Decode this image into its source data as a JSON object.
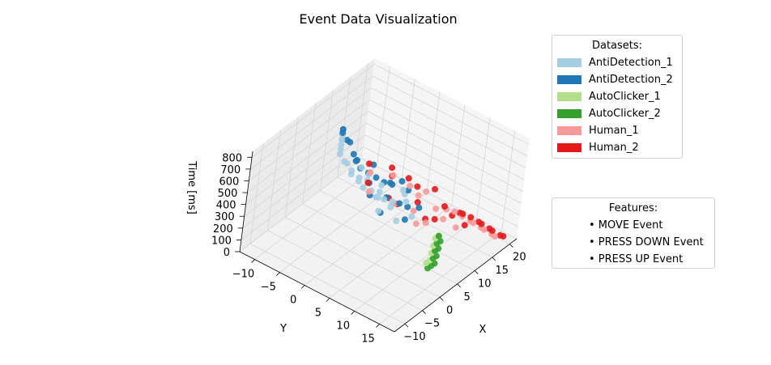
{
  "chart_data": {
    "type": "scatter",
    "projection": "3d",
    "title": "Event Data Visualization",
    "xlabel": "X",
    "ylabel": "Y",
    "zlabel": "Time [ms]",
    "xlim": [
      -13,
      22
    ],
    "ylim": [
      -13,
      18
    ],
    "zlim": [
      0,
      850
    ],
    "x_ticks": [
      -10,
      -5,
      0,
      5,
      10,
      15,
      20
    ],
    "y_ticks": [
      -10,
      -5,
      0,
      5,
      10,
      15
    ],
    "z_ticks": [
      0,
      100,
      200,
      300,
      400,
      500,
      600,
      700,
      800
    ],
    "grid": true,
    "legend_placement": "right",
    "series": [
      {
        "name": "AntiDetection_1",
        "color": "#a6cee3",
        "points": [
          [
            3,
            -6,
            820
          ],
          [
            3,
            -6,
            780
          ],
          [
            3,
            -6,
            740
          ],
          [
            3,
            -6,
            700
          ],
          [
            3,
            -6,
            660
          ],
          [
            3,
            -6,
            620
          ],
          [
            3,
            -5,
            580
          ],
          [
            4,
            -5,
            540
          ],
          [
            4,
            -4,
            500
          ],
          [
            4,
            -4,
            470
          ],
          [
            5,
            -3,
            440
          ],
          [
            5,
            -3,
            410
          ],
          [
            5,
            -2,
            380
          ],
          [
            6,
            -1,
            350
          ],
          [
            6,
            0,
            320
          ],
          [
            7,
            1,
            300
          ],
          [
            8,
            2,
            280
          ],
          [
            6,
            -2,
            420
          ],
          [
            5,
            1,
            360
          ],
          [
            7,
            0,
            340
          ],
          [
            9,
            -1,
            330
          ],
          [
            8,
            -3,
            400
          ],
          [
            6,
            3,
            300
          ],
          [
            10,
            3,
            320
          ],
          [
            4,
            2,
            290
          ],
          [
            7,
            -4,
            460
          ],
          [
            9,
            4,
            300
          ],
          [
            11,
            2,
            310
          ],
          [
            5,
            5,
            250
          ],
          [
            8,
            6,
            240
          ]
        ]
      },
      {
        "name": "AntiDetection_2",
        "color": "#1f78b4",
        "points": [
          [
            3,
            -6,
            830
          ],
          [
            3,
            -6,
            800
          ],
          [
            3,
            -5,
            760
          ],
          [
            4,
            -5,
            720
          ],
          [
            4,
            -4,
            640
          ],
          [
            5,
            -4,
            560
          ],
          [
            5,
            -3,
            520
          ],
          [
            6,
            -2,
            480
          ],
          [
            7,
            -1,
            440
          ],
          [
            8,
            0,
            400
          ],
          [
            9,
            1,
            380
          ],
          [
            6,
            2,
            360
          ],
          [
            10,
            0,
            350
          ],
          [
            4,
            0,
            380
          ],
          [
            7,
            4,
            330
          ],
          [
            11,
            3,
            330
          ],
          [
            9,
            -3,
            460
          ],
          [
            5,
            -1,
            440
          ],
          [
            8,
            5,
            300
          ],
          [
            12,
            1,
            340
          ],
          [
            3,
            3,
            320
          ],
          [
            10,
            6,
            270
          ],
          [
            6,
            6,
            260
          ],
          [
            7,
            -5,
            500
          ]
        ]
      },
      {
        "name": "AutoClicker_1",
        "color": "#b2df8a",
        "points": [
          [
            1,
            14,
            180
          ],
          [
            2,
            14,
            180
          ],
          [
            3,
            14,
            175
          ],
          [
            4,
            13,
            175
          ],
          [
            5,
            13,
            170
          ],
          [
            6,
            12,
            170
          ],
          [
            7,
            12,
            170
          ],
          [
            8,
            11,
            165
          ],
          [
            9,
            11,
            165
          ]
        ]
      },
      {
        "name": "AutoClicker_2",
        "color": "#33a02c",
        "points": [
          [
            0,
            15,
            180
          ],
          [
            1,
            15,
            178
          ],
          [
            2,
            15,
            176
          ],
          [
            3,
            14,
            174
          ],
          [
            4,
            14,
            172
          ],
          [
            5,
            13,
            170
          ],
          [
            6,
            13,
            168
          ],
          [
            7,
            12,
            166
          ],
          [
            8,
            12,
            164
          ],
          [
            9,
            11,
            162
          ]
        ]
      },
      {
        "name": "Human_1",
        "color": "#fb9a99",
        "points": [
          [
            20,
            15,
            0
          ],
          [
            19,
            15,
            40
          ],
          [
            18,
            14,
            80
          ],
          [
            17,
            14,
            120
          ],
          [
            16,
            13,
            160
          ],
          [
            15,
            13,
            200
          ],
          [
            14,
            12,
            240
          ],
          [
            13,
            11,
            280
          ],
          [
            12,
            10,
            300
          ],
          [
            5,
            8,
            400
          ],
          [
            3,
            10,
            380
          ],
          [
            8,
            12,
            350
          ],
          [
            11,
            5,
            330
          ],
          [
            13,
            2,
            300
          ],
          [
            14,
            -2,
            280
          ],
          [
            10,
            -4,
            350
          ],
          [
            7,
            -2,
            300
          ],
          [
            9,
            14,
            300
          ],
          [
            4,
            5,
            420
          ],
          [
            12,
            8,
            260
          ],
          [
            15,
            4,
            250
          ],
          [
            6,
            10,
            320
          ]
        ]
      },
      {
        "name": "Human_2",
        "color": "#e31a1c",
        "points": [
          [
            21,
            16,
            0
          ],
          [
            20,
            16,
            30
          ],
          [
            19,
            15,
            70
          ],
          [
            18,
            15,
            110
          ],
          [
            17,
            14,
            150
          ],
          [
            16,
            14,
            190
          ],
          [
            15,
            13,
            230
          ],
          [
            14,
            12,
            260
          ],
          [
            13,
            12,
            290
          ],
          [
            6,
            8,
            450
          ],
          [
            4,
            11,
            420
          ],
          [
            9,
            13,
            380
          ],
          [
            12,
            4,
            360
          ],
          [
            14,
            1,
            320
          ],
          [
            15,
            -3,
            300
          ],
          [
            11,
            -5,
            380
          ],
          [
            8,
            -3,
            330
          ],
          [
            10,
            15,
            320
          ],
          [
            3,
            6,
            460
          ],
          [
            13,
            9,
            280
          ],
          [
            16,
            5,
            270
          ],
          [
            7,
            11,
            350
          ],
          [
            5,
            3,
            400
          ],
          [
            12,
            -1,
            340
          ]
        ]
      }
    ]
  },
  "legend_datasets": {
    "title": "Datasets:",
    "items": [
      {
        "label": "AntiDetection_1",
        "color": "#a6cee3"
      },
      {
        "label": "AntiDetection_2",
        "color": "#1f78b4"
      },
      {
        "label": "AutoClicker_1",
        "color": "#b2df8a"
      },
      {
        "label": "AutoClicker_2",
        "color": "#33a02c"
      },
      {
        "label": "Human_1",
        "color": "#fb9a99"
      },
      {
        "label": "Human_2",
        "color": "#e31a1c"
      }
    ]
  },
  "legend_features": {
    "title": "Features:",
    "items": [
      "• MOVE Event",
      "• PRESS DOWN Event",
      "• PRESS UP Event"
    ]
  }
}
